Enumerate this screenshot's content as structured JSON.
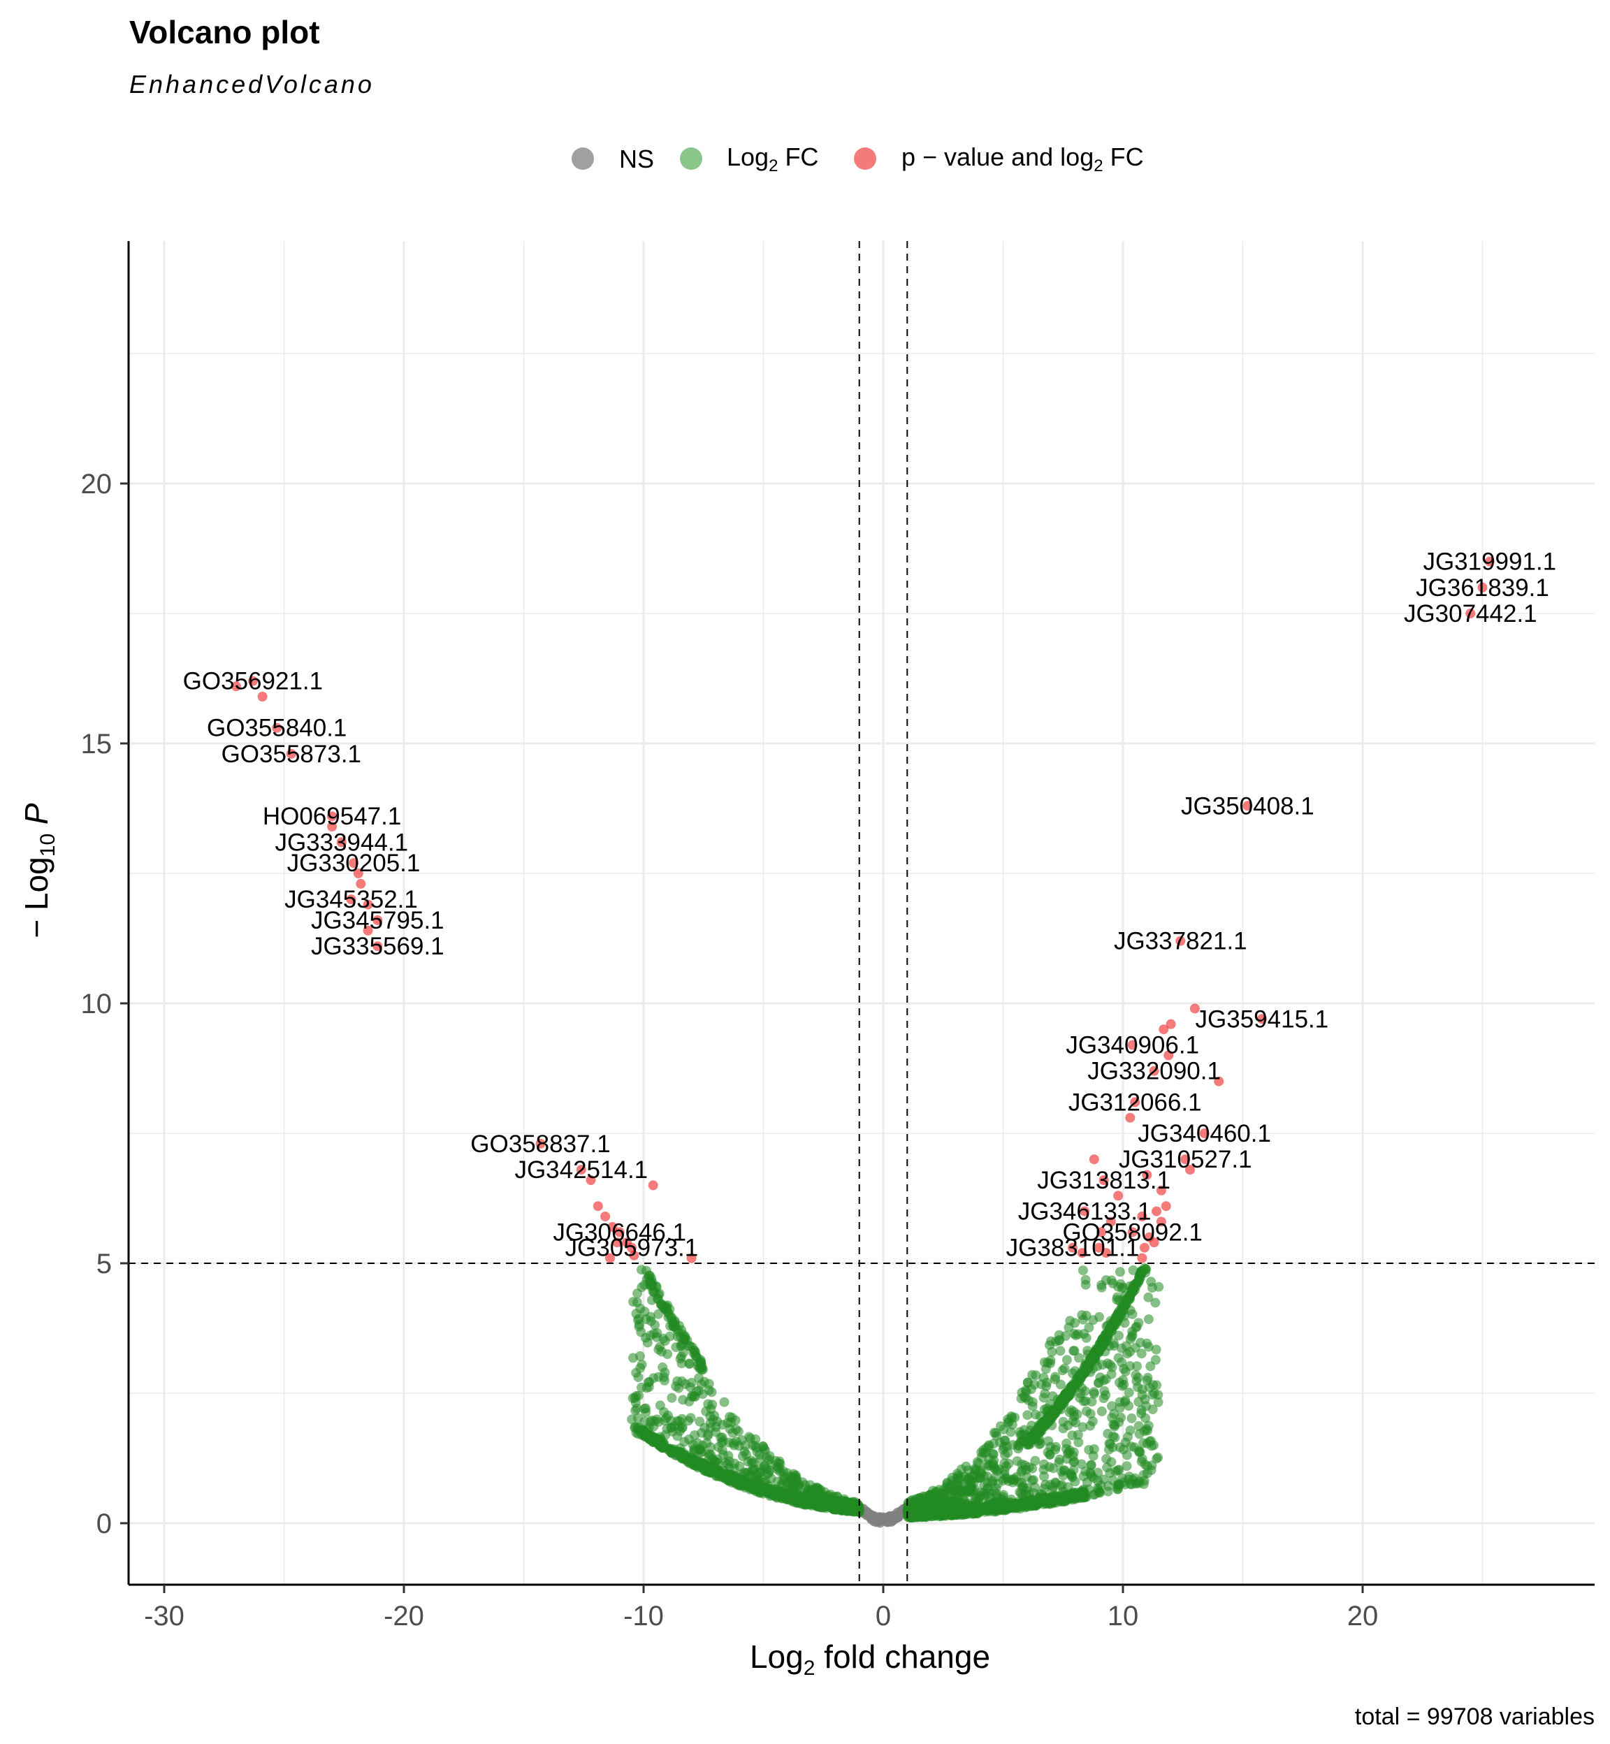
{
  "chart_data": {
    "type": "scatter",
    "title": "Volcano plot",
    "subtitle": "EnhancedVolcano",
    "xlabel": "Log2 fold change",
    "ylabel": "-Log10 P",
    "caption": "total = 99708 variables",
    "xlim": [
      -31.5,
      29.5
    ],
    "ylim": [
      -1.2,
      24.5
    ],
    "x_ticks": [
      -30,
      -20,
      -10,
      0,
      10,
      20
    ],
    "y_ticks": [
      0,
      5,
      10,
      15,
      20
    ],
    "pvalue_cutoff": 5,
    "fc_cutoff": 1,
    "grid": true,
    "legend_position": "top",
    "legend": [
      {
        "key": "NS",
        "label": "NS",
        "color": "#808080"
      },
      {
        "key": "FC",
        "label": "Log2 FC",
        "color": "#3CA03C"
      },
      {
        "key": "P_FC",
        "label": "p - value and log2 FC",
        "color": "#EE2222"
      }
    ],
    "colors": {
      "ns": "#808080",
      "fc": "#228B22",
      "sig": "#EE2222"
    },
    "significant_points": [
      {
        "x": 25.3,
        "y": 18.5,
        "label": "JG319991.1"
      },
      {
        "x": 25.0,
        "y": 18.0,
        "label": "JG361839.1"
      },
      {
        "x": 24.5,
        "y": 17.5,
        "label": "JG307442.1"
      },
      {
        "x": -26.3,
        "y": 16.2,
        "label": "GO356921.1"
      },
      {
        "x": -27.0,
        "y": 16.1
      },
      {
        "x": -25.9,
        "y": 15.9
      },
      {
        "x": -25.3,
        "y": 15.3,
        "label": "GO355840.1"
      },
      {
        "x": -24.7,
        "y": 14.8,
        "label": "GO355873.1"
      },
      {
        "x": 15.2,
        "y": 13.8,
        "label": "JG350408.1"
      },
      {
        "x": -23.0,
        "y": 13.6,
        "label": "HO069547.1"
      },
      {
        "x": -23.0,
        "y": 13.4
      },
      {
        "x": -22.6,
        "y": 13.1,
        "label": "JG333944.1"
      },
      {
        "x": -22.1,
        "y": 12.7,
        "label": "JG330205.1"
      },
      {
        "x": -21.9,
        "y": 12.5
      },
      {
        "x": -21.8,
        "y": 12.3
      },
      {
        "x": -22.2,
        "y": 12.0,
        "label": "JG345352.1"
      },
      {
        "x": -21.5,
        "y": 11.9
      },
      {
        "x": -21.1,
        "y": 11.6,
        "label": "JG345795.1"
      },
      {
        "x": -21.5,
        "y": 11.4
      },
      {
        "x": -21.1,
        "y": 11.1,
        "label": "JG335569.1"
      },
      {
        "x": 12.4,
        "y": 11.2,
        "label": "JG337821.1"
      },
      {
        "x": 13.0,
        "y": 9.9
      },
      {
        "x": 15.8,
        "y": 9.7,
        "label": "JG359415.1"
      },
      {
        "x": 12.0,
        "y": 9.6
      },
      {
        "x": 11.7,
        "y": 9.5
      },
      {
        "x": 10.4,
        "y": 9.2,
        "label": "JG340906.1"
      },
      {
        "x": 11.9,
        "y": 9.0
      },
      {
        "x": 11.3,
        "y": 8.7,
        "label": "JG332090.1"
      },
      {
        "x": 14.0,
        "y": 8.5
      },
      {
        "x": 10.5,
        "y": 8.1,
        "label": "JG312066.1"
      },
      {
        "x": 10.3,
        "y": 7.8
      },
      {
        "x": -14.3,
        "y": 7.3,
        "label": "GO358837.1"
      },
      {
        "x": 13.4,
        "y": 7.5,
        "label": "JG340460.1"
      },
      {
        "x": 12.6,
        "y": 7.0,
        "label": "JG310527.1"
      },
      {
        "x": 8.8,
        "y": 7.0
      },
      {
        "x": -12.6,
        "y": 6.8,
        "label": "JG342514.1"
      },
      {
        "x": -12.2,
        "y": 6.6
      },
      {
        "x": -9.6,
        "y": 6.5
      },
      {
        "x": 12.8,
        "y": 6.8
      },
      {
        "x": 9.2,
        "y": 6.6,
        "label": "JG313813.1"
      },
      {
        "x": 11.0,
        "y": 6.7
      },
      {
        "x": 11.6,
        "y": 6.4
      },
      {
        "x": 9.8,
        "y": 6.3
      },
      {
        "x": 11.8,
        "y": 6.1
      },
      {
        "x": 8.4,
        "y": 6.0,
        "label": "JG346133.1"
      },
      {
        "x": 11.4,
        "y": 6.0
      },
      {
        "x": 11.6,
        "y": 5.8
      },
      {
        "x": -11.9,
        "y": 6.1
      },
      {
        "x": -11.6,
        "y": 5.9
      },
      {
        "x": -11.3,
        "y": 5.7
      },
      {
        "x": 10.8,
        "y": 5.9
      },
      {
        "x": 9.5,
        "y": 5.8
      },
      {
        "x": 9.1,
        "y": 5.6
      },
      {
        "x": 10.4,
        "y": 5.6,
        "label": "GO358092.1"
      },
      {
        "x": 11.1,
        "y": 5.5
      },
      {
        "x": 10.9,
        "y": 5.3
      },
      {
        "x": 11.3,
        "y": 5.4
      },
      {
        "x": -11.0,
        "y": 5.6,
        "label": "JG306646.1"
      },
      {
        "x": -11.1,
        "y": 5.4
      },
      {
        "x": -10.7,
        "y": 5.4
      },
      {
        "x": 9.0,
        "y": 5.3
      },
      {
        "x": 8.3,
        "y": 5.2
      },
      {
        "x": 7.9,
        "y": 5.3,
        "label": "JG383101.1"
      },
      {
        "x": 9.3,
        "y": 5.2
      },
      {
        "x": 10.8,
        "y": 5.1
      },
      {
        "x": -10.5,
        "y": 5.3,
        "label": "JG305973.1"
      },
      {
        "x": -10.4,
        "y": 5.15
      },
      {
        "x": -11.4,
        "y": 5.1
      },
      {
        "x": -8.0,
        "y": 5.1
      }
    ]
  }
}
